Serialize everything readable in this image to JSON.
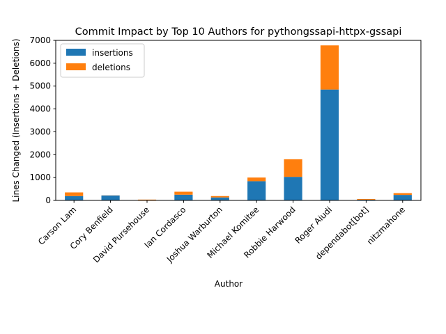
{
  "chart_data": {
    "type": "bar",
    "stacked": true,
    "title": "Commit Impact by Top 10 Authors for pythongssapi-httpx-gssapi",
    "xlabel": "Author",
    "ylabel": "Lines Changed (Insertions + Deletions)",
    "categories": [
      "Carson Lam",
      "Cory Benfield",
      "David Pursehouse",
      "Ian Cordasco",
      "Joshua Warburton",
      "Michael Komitee",
      "Robbie Harwood",
      "Roger Aiudi",
      "dependabot[bot]",
      "nitzmahone"
    ],
    "series": [
      {
        "name": "insertions",
        "color": "#1f77b4",
        "values": [
          190,
          215,
          15,
          250,
          130,
          840,
          1030,
          4850,
          30,
          240
        ]
      },
      {
        "name": "deletions",
        "color": "#ff7f0e",
        "values": [
          160,
          5,
          20,
          130,
          60,
          160,
          770,
          1930,
          30,
          80
        ]
      }
    ],
    "ylim": [
      0,
      7000
    ],
    "yticks": [
      0,
      1000,
      2000,
      3000,
      4000,
      5000,
      6000,
      7000
    ],
    "yticklabels": [
      "0",
      "1000",
      "2000",
      "3000",
      "4000",
      "5000",
      "6000",
      "7000"
    ],
    "legend_position": "top-left",
    "grid": false
  }
}
